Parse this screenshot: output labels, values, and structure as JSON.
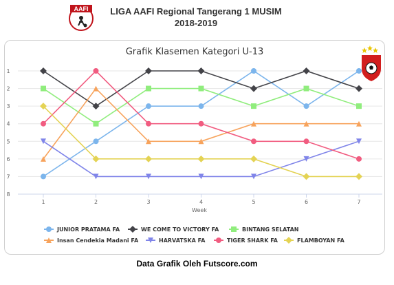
{
  "header": {
    "logo_text": "AAFI",
    "line1": "LIGA AAFI Regional Tangerang 1 MUSIM",
    "line2": "2018-2019"
  },
  "footer": {
    "text": "Data Grafik Oleh Futscore.com"
  },
  "chart_data": {
    "type": "line",
    "title": "Grafik Klasemen Kategori U-13",
    "xlabel": "Week",
    "ylabel": "",
    "x": [
      1,
      2,
      3,
      4,
      5,
      6,
      7
    ],
    "ylim": [
      1,
      8
    ],
    "y_reversed": true,
    "yticks": [
      1,
      2,
      3,
      4,
      5,
      6,
      7,
      8
    ],
    "grid": true,
    "legend_position": "bottom",
    "series": [
      {
        "name": "JUNIOR PRATAMA FA",
        "color": "#7cb5ec",
        "marker": "circle",
        "values": [
          7,
          5,
          3,
          3,
          1,
          3,
          1
        ]
      },
      {
        "name": "WE COME TO VICTORY FA",
        "color": "#434348",
        "marker": "diamond",
        "values": [
          1,
          3,
          1,
          1,
          2,
          1,
          2
        ]
      },
      {
        "name": "BINTANG SELATAN",
        "color": "#90ed7d",
        "marker": "square",
        "values": [
          2,
          4,
          2,
          2,
          3,
          2,
          3
        ]
      },
      {
        "name": "Insan Cendekia Madani FA",
        "color": "#f7a35c",
        "marker": "triangle",
        "values": [
          6,
          2,
          5,
          5,
          4,
          4,
          4
        ]
      },
      {
        "name": "HARVATSKA FA",
        "color": "#8085e9",
        "marker": "triangle-down",
        "values": [
          5,
          7,
          7,
          7,
          7,
          6,
          5
        ]
      },
      {
        "name": "TIGER SHARK FA",
        "color": "#f15c80",
        "marker": "circle",
        "values": [
          4,
          1,
          4,
          4,
          5,
          5,
          6
        ]
      },
      {
        "name": "FLAMBOYAN FA",
        "color": "#e4d354",
        "marker": "diamond",
        "values": [
          3,
          6,
          6,
          6,
          6,
          7,
          7
        ]
      }
    ]
  }
}
